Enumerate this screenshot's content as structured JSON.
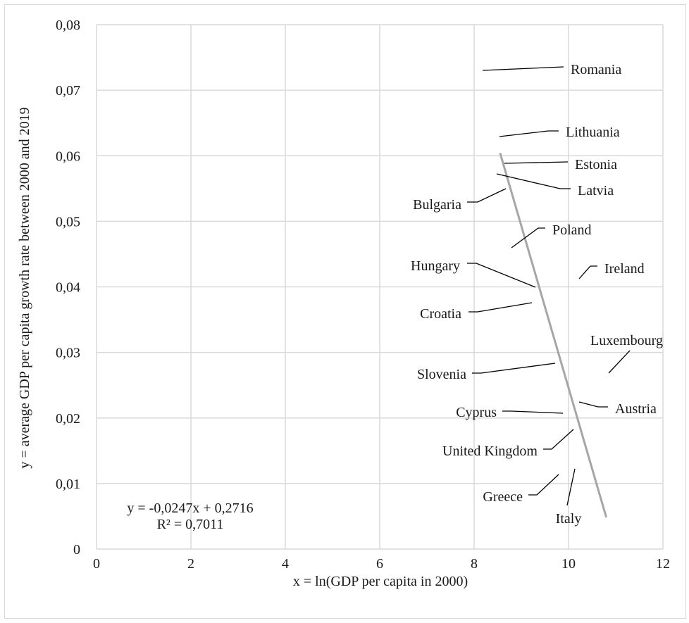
{
  "chart_data": {
    "type": "scatter",
    "title": "",
    "xlabel": "x = ln(GDP per capita in 2000)",
    "ylabel": "y = average GDP per capita growth rate between 2000 and 2019",
    "xlim": [
      0,
      12
    ],
    "ylim": [
      0,
      0.08
    ],
    "x_ticks": [
      "0",
      "2",
      "4",
      "6",
      "8",
      "10",
      "12"
    ],
    "y_ticks": [
      "0",
      "0,01",
      "0,02",
      "0,03",
      "0,04",
      "0,05",
      "0,06",
      "0,07",
      "0,08"
    ],
    "grid": true,
    "marker_visible": false,
    "points": [
      {
        "label": "Romania",
        "x": 8.55,
        "y": 0.0731
      },
      {
        "label": "Lithuania",
        "x": 8.9,
        "y": 0.0629
      },
      {
        "label": "Estonia",
        "x": 9.05,
        "y": 0.0588
      },
      {
        "label": "Latvia",
        "x": 8.85,
        "y": 0.0573
      },
      {
        "label": "Bulgaria",
        "x": 8.6,
        "y": 0.0551
      },
      {
        "label": "Poland",
        "x": 9.3,
        "y": 0.0456
      },
      {
        "label": "Ireland",
        "x": 10.2,
        "y": 0.0412
      },
      {
        "label": "Hungary",
        "x": 9.3,
        "y": 0.0401
      },
      {
        "label": "Croatia",
        "x": 9.25,
        "y": 0.0377
      },
      {
        "label": "Luxembourg",
        "x": 10.8,
        "y": 0.0268
      },
      {
        "label": "Slovenia",
        "x": 9.75,
        "y": 0.0283
      },
      {
        "label": "Austria",
        "x": 10.15,
        "y": 0.0224
      },
      {
        "label": "Cyprus",
        "x": 9.9,
        "y": 0.0207
      },
      {
        "label": "United Kingdom",
        "x": 10.1,
        "y": 0.0182
      },
      {
        "label": "Greece",
        "x": 9.75,
        "y": 0.0117
      },
      {
        "label": "Italy",
        "x": 10.15,
        "y": 0.0121
      }
    ],
    "trendline": {
      "slope": -0.0247,
      "intercept": 0.2716,
      "x_range": [
        8.55,
        10.8
      ],
      "equation": "y = -0,0247x + 0,2716",
      "r_squared": "R² = 0,7011",
      "color": "#a6a6a6"
    },
    "colors": {
      "grid": "#d9d9d9",
      "text": "#1a1a1a",
      "leader": "#000000"
    }
  }
}
